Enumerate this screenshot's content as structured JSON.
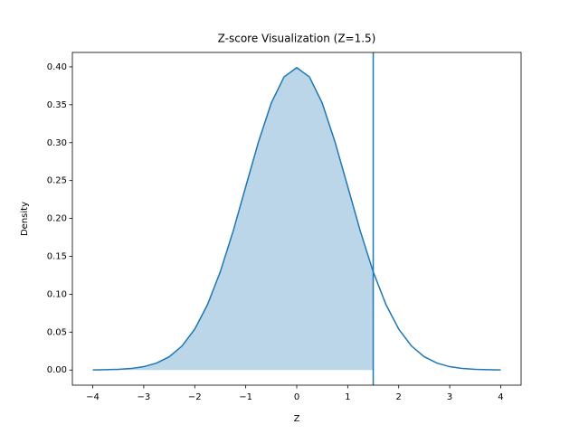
{
  "chart_data": {
    "type": "line",
    "title": "Z-score Visualization (Z=1.5)",
    "x_label": "Z",
    "y_label": "Density",
    "x": [
      -4,
      -3.75,
      -3.5,
      -3.25,
      -3,
      -2.75,
      -2.5,
      -2.25,
      -2,
      -1.75,
      -1.5,
      -1.25,
      -1,
      -0.75,
      -0.5,
      -0.25,
      0,
      0.25,
      0.5,
      0.75,
      1,
      1.25,
      1.5,
      1.75,
      2,
      2.25,
      2.5,
      2.75,
      3,
      3.25,
      3.5,
      3.75,
      4
    ],
    "series": [
      {
        "name": "Density",
        "color": "#1f77b4",
        "values": [
          0.0001,
          0.0004,
          0.0009,
          0.002,
          0.0044,
          0.0091,
          0.0175,
          0.0317,
          0.054,
          0.0863,
          0.1295,
          0.1826,
          0.242,
          0.3011,
          0.3521,
          0.3867,
          0.3989,
          0.3867,
          0.3521,
          0.3011,
          0.242,
          0.1826,
          0.1295,
          0.0863,
          0.054,
          0.0317,
          0.0175,
          0.0091,
          0.0044,
          0.002,
          0.0009,
          0.0004,
          0.0001
        ]
      }
    ],
    "z": 1.5,
    "fill_color": "#1f77b4",
    "xlim": [
      -4.4,
      4.4
    ],
    "ylim": [
      -0.02,
      0.419
    ],
    "xticks": [
      {
        "value": -4,
        "label": "−4"
      },
      {
        "value": -3,
        "label": "−3"
      },
      {
        "value": -2,
        "label": "−2"
      },
      {
        "value": -1,
        "label": "−1"
      },
      0,
      1,
      2,
      3,
      4
    ],
    "yticks": [
      {
        "value": 0,
        "label": "0.00"
      },
      {
        "value": 0.05,
        "label": "0.05"
      },
      {
        "value": 0.1,
        "label": "0.10"
      },
      {
        "value": 0.15,
        "label": "0.15"
      },
      {
        "value": 0.2,
        "label": "0.20"
      },
      {
        "value": 0.25,
        "label": "0.25"
      },
      {
        "value": 0.3,
        "label": "0.30"
      },
      {
        "value": 0.35,
        "label": "0.35"
      },
      {
        "value": 0.4,
        "label": "0.40"
      }
    ]
  }
}
